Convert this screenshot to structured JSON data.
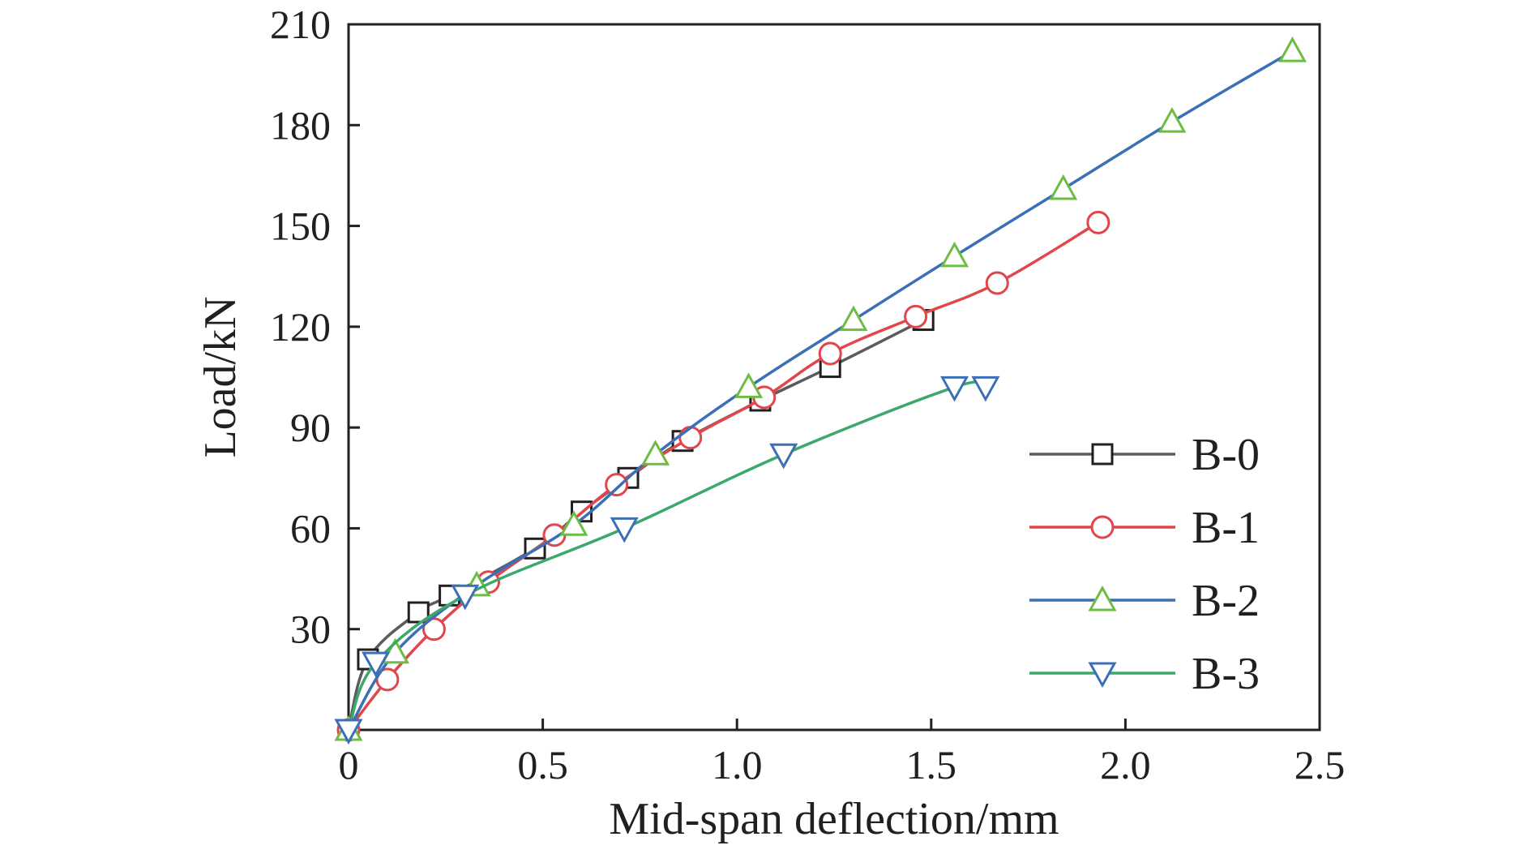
{
  "colors": {
    "axis": "#231f20",
    "B-0_line": "#5b5b5b",
    "B-0_marker": "#231f20",
    "B-1_line": "#e0464b",
    "B-1_marker": "#e0464b",
    "B-2_line": "#3b6fb6",
    "B-2_marker": "#6dbd45",
    "B-3_line": "#3da86b",
    "B-3_marker": "#3b6fb6"
  },
  "chart_data": {
    "type": "line",
    "title": "",
    "xlabel": "Mid-span deflection/mm",
    "ylabel": "Load/kN",
    "xlim": [
      0,
      2.5
    ],
    "ylim": [
      0,
      210
    ],
    "xticks": [
      0,
      0.5,
      1.0,
      1.5,
      2.0,
      2.5
    ],
    "xtick_labels": [
      "0",
      "0.5",
      "1.0",
      "1.5",
      "2.0",
      "2.5"
    ],
    "yticks": [
      30,
      60,
      90,
      120,
      150,
      180,
      210
    ],
    "ytick_labels": [
      "30",
      "60",
      "90",
      "120",
      "150",
      "180",
      "210"
    ],
    "grid": false,
    "legend_position": "lower-right",
    "series": [
      {
        "name": "B-0",
        "marker": "square",
        "x": [
          0.0,
          0.05,
          0.18,
          0.26,
          0.48,
          0.6,
          0.72,
          0.86,
          1.06,
          1.24,
          1.48
        ],
        "y": [
          0,
          21,
          35,
          40,
          54,
          65,
          75,
          86,
          98,
          108,
          122
        ]
      },
      {
        "name": "B-1",
        "marker": "circle",
        "x": [
          0.0,
          0.1,
          0.22,
          0.36,
          0.53,
          0.69,
          0.88,
          1.07,
          1.24,
          1.46,
          1.67,
          1.93
        ],
        "y": [
          0,
          15,
          30,
          44,
          58,
          73,
          87,
          99,
          112,
          123,
          133,
          151
        ]
      },
      {
        "name": "B-2",
        "marker": "triangle-up",
        "x": [
          0.0,
          0.12,
          0.33,
          0.58,
          0.79,
          1.03,
          1.3,
          1.56,
          1.84,
          2.12,
          2.43
        ],
        "y": [
          0,
          23,
          43,
          61,
          82,
          102,
          122,
          141,
          161,
          181,
          202
        ]
      },
      {
        "name": "B-3",
        "marker": "triangle-down",
        "x": [
          0.0,
          0.07,
          0.3,
          0.71,
          1.12,
          1.56,
          1.64
        ],
        "y": [
          0,
          20,
          40,
          60,
          82,
          102,
          102
        ]
      }
    ]
  }
}
